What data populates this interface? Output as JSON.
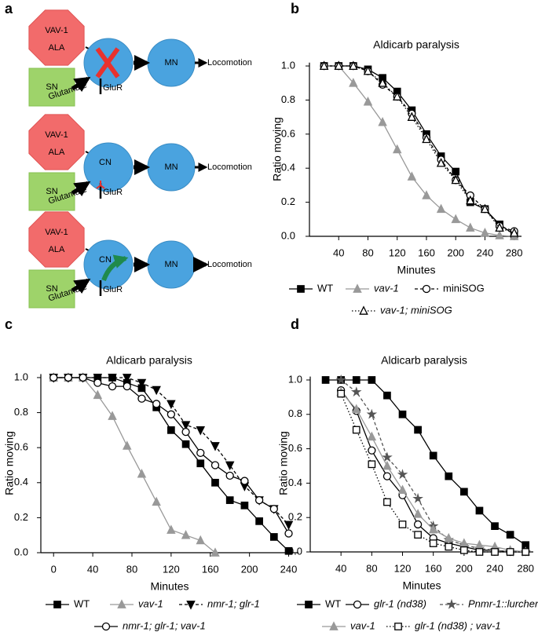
{
  "panel_labels": [
    "a",
    "b",
    "c",
    "d"
  ],
  "diagram": {
    "rows": [
      {
        "vav": "VAV-1",
        "ala": "ALA",
        "sn": "SN",
        "glutamate": "Glutamate",
        "glur": "GluR",
        "mn": "MN",
        "output": "Locomotion"
      },
      {
        "vav": "VAV-1",
        "ala": "ALA",
        "sn": "SN",
        "glutamate": "Glutamate",
        "glur": "GluR",
        "cn": "CN",
        "mn": "MN",
        "output": "Locomotion"
      },
      {
        "vav": "VAV-1",
        "ala": "ALA",
        "sn": "SN",
        "glutamate": "Glutamate",
        "glur": "GluR",
        "cn": "CN",
        "mn": "MN",
        "output": "Locomotion"
      }
    ]
  },
  "chart_data": [
    {
      "type": "line",
      "title": "Aldicarb paralysis",
      "x_label": "Minutes",
      "y_label": "Ratio moving",
      "x": [
        20,
        40,
        60,
        80,
        100,
        120,
        140,
        160,
        180,
        200,
        220,
        240,
        260,
        280
      ],
      "xlim": [
        0,
        290
      ],
      "xticks": [
        40,
        80,
        120,
        160,
        200,
        240,
        280
      ],
      "ylim": [
        0,
        1.02
      ],
      "yticks": [
        {
          "value": 0,
          "label": "0.0"
        },
        0.2,
        0.4,
        0.6,
        0.8,
        {
          "value": 1,
          "label": "1.0"
        }
      ],
      "series": [
        {
          "name": "WT",
          "color": "#000000",
          "marker": "square",
          "line_style": "solid",
          "italic": false,
          "values": [
            1,
            1,
            1,
            0.98,
            0.93,
            0.85,
            0.74,
            0.6,
            0.47,
            0.38,
            0.2,
            0.16,
            0.07,
            0.01
          ]
        },
        {
          "name": "vav-1",
          "color": "#999999",
          "marker": "triangle",
          "line_style": "solid",
          "italic": true,
          "values": [
            1,
            1,
            0.9,
            0.79,
            0.67,
            0.51,
            0.35,
            0.24,
            0.16,
            0.1,
            0.05,
            0.02,
            0.005,
            0
          ]
        },
        {
          "name": "miniSOG",
          "color": "#000000",
          "marker": "open-circle",
          "line_style": "dashed",
          "italic": false,
          "values": [
            1,
            1,
            1,
            0.97,
            0.89,
            0.82,
            0.72,
            0.58,
            0.45,
            0.33,
            0.24,
            0.16,
            0.06,
            0.03
          ]
        },
        {
          "name": "vav-1; miniSOG",
          "color": "#000000",
          "marker": "open-triangle",
          "line_style": "dotted",
          "italic": true,
          "values": [
            1,
            1,
            1,
            0.97,
            0.9,
            0.82,
            0.7,
            0.57,
            0.43,
            0.33,
            0.21,
            0.16,
            0.05,
            0.02
          ]
        }
      ]
    },
    {
      "type": "line",
      "title": "Aldicarb paralysis",
      "x_label": "Minutes",
      "y_label": "Ratio moving",
      "x": [
        0,
        15,
        30,
        45,
        60,
        75,
        90,
        105,
        120,
        135,
        150,
        165,
        180,
        195,
        210,
        225,
        240
      ],
      "xlim": [
        -13,
        250
      ],
      "xticks": [
        0,
        40,
        80,
        120,
        160,
        200,
        240
      ],
      "ylim": [
        0,
        1.02
      ],
      "yticks": [
        {
          "value": 0,
          "label": "0.0"
        },
        0.2,
        0.4,
        0.6,
        0.8,
        {
          "value": 1,
          "label": "1.0"
        }
      ],
      "series": [
        {
          "name": "WT",
          "color": "#000000",
          "marker": "square",
          "line_style": "solid",
          "italic": false,
          "values": [
            1,
            1,
            1,
            1,
            1,
            0.97,
            0.94,
            0.83,
            0.7,
            0.62,
            0.51,
            0.4,
            0.3,
            0.27,
            0.18,
            0.09,
            0.01
          ]
        },
        {
          "name": "vav-1",
          "color": "#999999",
          "marker": "triangle",
          "line_style": "solid",
          "italic": true,
          "values": [
            1,
            1,
            1,
            0.9,
            0.78,
            0.61,
            0.45,
            0.29,
            0.13,
            0.1,
            0.07,
            0,
            null,
            null,
            null,
            null,
            null
          ]
        },
        {
          "name": "nmr-1; glr-1",
          "color": "#000000",
          "marker": "triangle-down",
          "line_style": "dashed",
          "italic": true,
          "values": [
            1,
            1,
            1,
            1,
            1,
            1,
            0.97,
            0.93,
            0.85,
            0.73,
            0.7,
            0.61,
            0.5,
            0.38,
            0.3,
            0.25,
            0.16
          ]
        },
        {
          "name": "nmr-1; glr-1; vav-1",
          "color": "#000000",
          "marker": "open-circle",
          "line_style": "solid",
          "italic": true,
          "values": [
            1,
            1,
            1,
            0.97,
            0.95,
            0.95,
            0.88,
            0.85,
            0.79,
            0.69,
            0.57,
            0.5,
            0.44,
            0.41,
            0.3,
            0.25,
            0.11
          ]
        }
      ]
    },
    {
      "type": "line",
      "title": "Aldicarb paralysis",
      "x_label": "Minutes",
      "y_label": "Ratio moving",
      "x": [
        20,
        40,
        60,
        80,
        100,
        120,
        140,
        160,
        180,
        200,
        220,
        240,
        260,
        280
      ],
      "xlim": [
        0,
        290
      ],
      "xticks": [
        40,
        80,
        120,
        160,
        200,
        240,
        280
      ],
      "ylim": [
        0,
        1.02
      ],
      "yticks": [
        {
          "value": 0,
          "label": "0.0"
        },
        0.2,
        0.4,
        0.6,
        0.8,
        {
          "value": 1,
          "label": "1.0"
        }
      ],
      "series": [
        {
          "name": "WT",
          "color": "#000000",
          "marker": "square",
          "line_style": "solid",
          "italic": false,
          "values": [
            1,
            1,
            1,
            1,
            0.91,
            0.8,
            0.71,
            0.56,
            0.44,
            0.35,
            0.24,
            0.15,
            0.1,
            0.04
          ]
        },
        {
          "name": "glr-1 (nd38)",
          "color": "#000000",
          "marker": "open-circle",
          "line_style": "solid",
          "italic": true,
          "values": [
            null,
            0.94,
            0.82,
            0.59,
            0.44,
            0.33,
            0.16,
            0.08,
            0.05,
            0.03,
            0.01,
            0.01,
            0,
            0
          ]
        },
        {
          "name": "Pnmr-1::lurcher",
          "color": "#555555",
          "marker": "star",
          "line_style": "dashed",
          "italic": true,
          "values": [
            null,
            1,
            0.93,
            0.8,
            0.55,
            0.45,
            0.31,
            0.15,
            0.07,
            0.04,
            0.02,
            0.01,
            0,
            0
          ]
        },
        {
          "name": "vav-1",
          "color": "#999999",
          "marker": "triangle",
          "line_style": "solid",
          "italic": true,
          "values": [
            null,
            0.93,
            0.83,
            0.67,
            0.5,
            0.36,
            0.22,
            0.13,
            0.08,
            0.05,
            0.04,
            0.03,
            0.01,
            0
          ]
        },
        {
          "name": "glr-1 (nd38) ; vav-1",
          "color": "#000000",
          "marker": "open-square",
          "line_style": "dotted",
          "italic": true,
          "values": [
            null,
            0.92,
            0.71,
            0.51,
            0.29,
            0.16,
            0.1,
            0.05,
            0.03,
            0.01,
            0,
            0,
            0,
            0
          ]
        }
      ]
    }
  ]
}
